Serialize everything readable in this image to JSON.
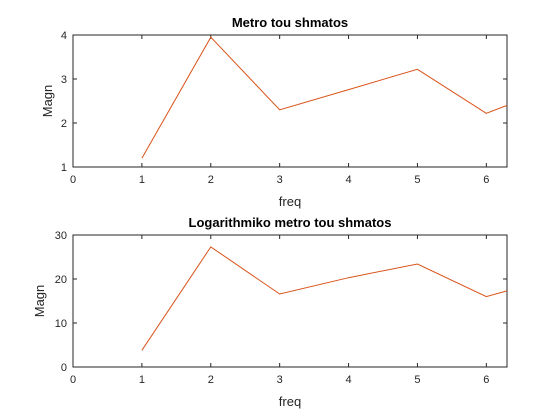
{
  "chart_data": [
    {
      "type": "line",
      "title": "Metro tou shmatos",
      "xlabel": "freq",
      "ylabel": "Magn",
      "xlim": [
        0,
        6.3
      ],
      "ylim": [
        1,
        4
      ],
      "xticks": [
        "0",
        "1",
        "2",
        "3",
        "4",
        "5",
        "6"
      ],
      "yticks": [
        "1",
        "2",
        "3",
        "4"
      ],
      "grid": false,
      "series_color": "#D95319",
      "x": [
        1,
        2,
        3,
        4,
        5,
        6,
        6.3
      ],
      "y": [
        1.2,
        3.95,
        2.3,
        2.76,
        3.22,
        2.22,
        2.4
      ]
    },
    {
      "type": "line",
      "title": "Logarithmiko metro tou shmatos",
      "xlabel": "freq",
      "ylabel": "Magn",
      "xlim": [
        0,
        6.3
      ],
      "ylim": [
        0,
        30
      ],
      "xticks": [
        "0",
        "1",
        "2",
        "3",
        "4",
        "5",
        "6"
      ],
      "yticks": [
        "0",
        "10",
        "20",
        "30"
      ],
      "grid": false,
      "series_color": "#D95319",
      "x": [
        1,
        2,
        3,
        4,
        5,
        6,
        6.3
      ],
      "y": [
        3.8,
        27.3,
        16.6,
        20.3,
        23.4,
        16.0,
        17.3
      ]
    }
  ]
}
